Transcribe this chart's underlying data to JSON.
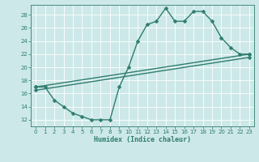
{
  "xlabel": "Humidex (Indice chaleur)",
  "bg_color": "#cde8e8",
  "line_color": "#2e7d6e",
  "grid_color": "#ffffff",
  "xlim": [
    -0.5,
    23.5
  ],
  "ylim": [
    11,
    29.5
  ],
  "yticks": [
    12,
    14,
    16,
    18,
    20,
    22,
    24,
    26,
    28
  ],
  "xticks": [
    0,
    1,
    2,
    3,
    4,
    5,
    6,
    7,
    8,
    9,
    10,
    11,
    12,
    13,
    14,
    15,
    16,
    17,
    18,
    19,
    20,
    21,
    22,
    23
  ],
  "line1_x": [
    0,
    1,
    2,
    3,
    4,
    5,
    6,
    7,
    8,
    9,
    10,
    11,
    12,
    13,
    14,
    15,
    16,
    17,
    18,
    19,
    20,
    21,
    22,
    23
  ],
  "line1_y": [
    17,
    17,
    15,
    14,
    13,
    12.5,
    12,
    12,
    12,
    17,
    20,
    24,
    26.5,
    27,
    29,
    27,
    27,
    28.5,
    28.5,
    27,
    24.5,
    23,
    22,
    22
  ],
  "line2_x": [
    0,
    23
  ],
  "line2_y": [
    17.0,
    22.0
  ],
  "line3_x": [
    0,
    23
  ],
  "line3_y": [
    16.5,
    21.5
  ],
  "markersize": 2.5,
  "linewidth": 1.0
}
